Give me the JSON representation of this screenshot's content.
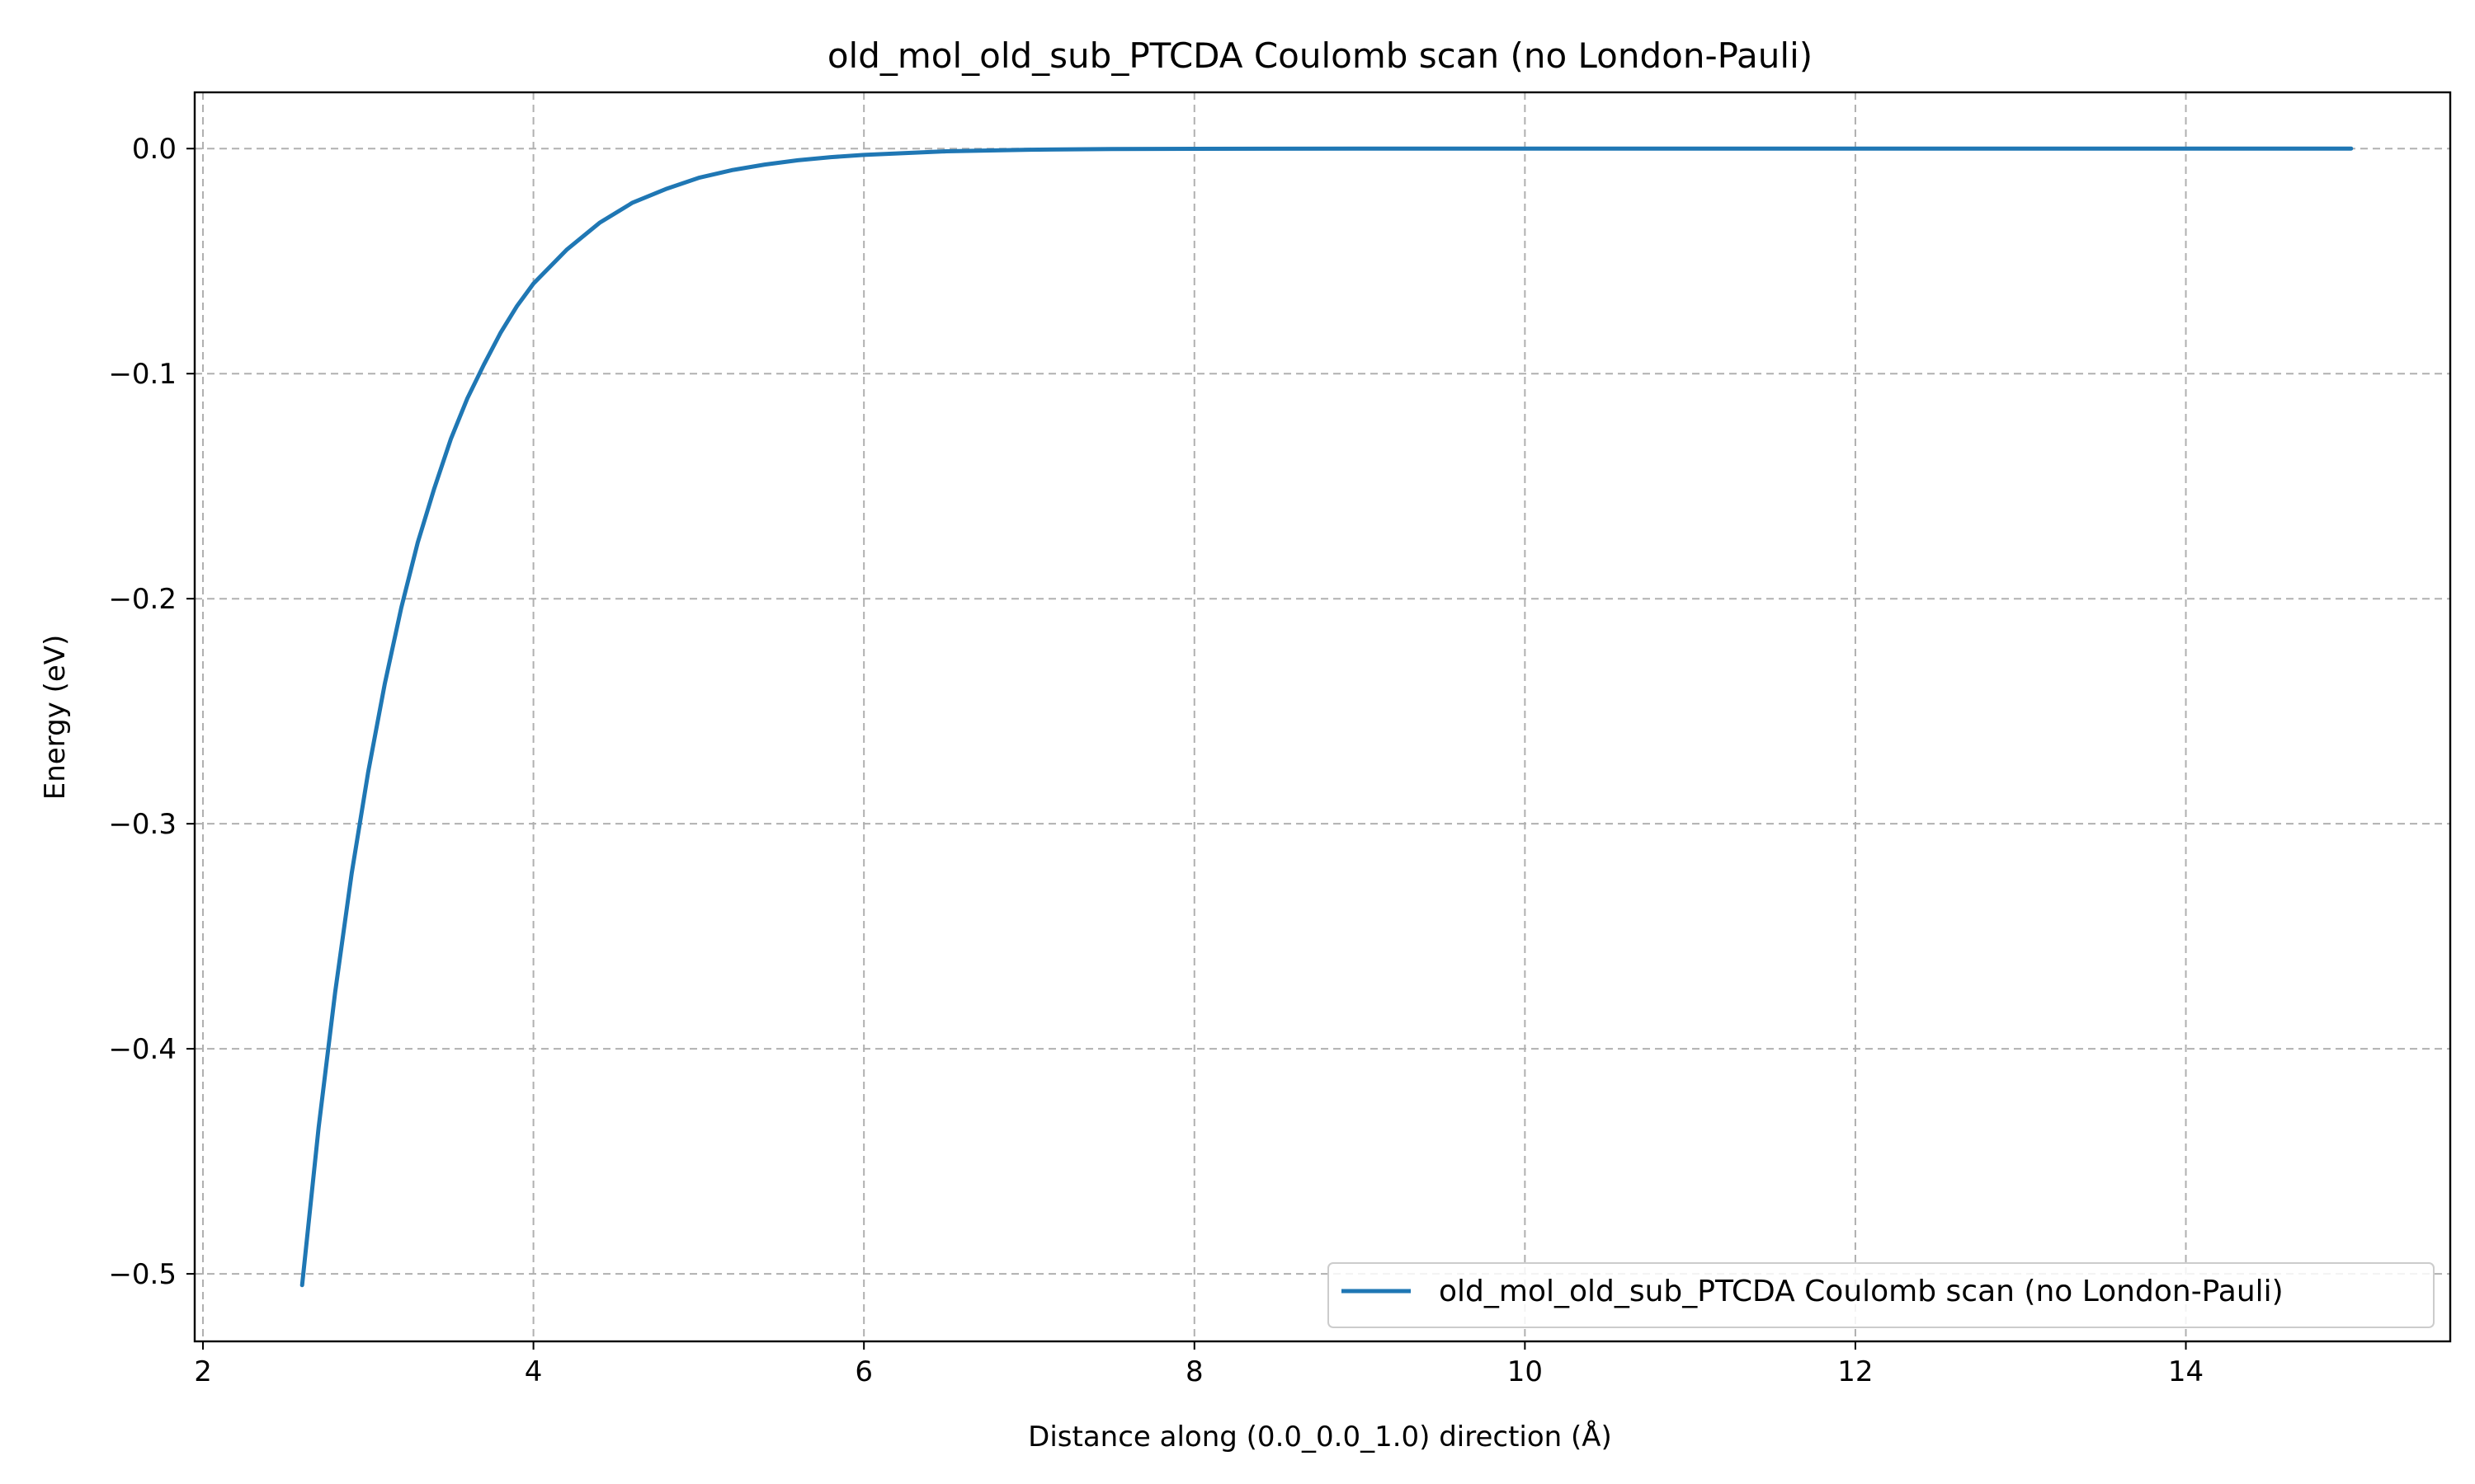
{
  "chart_data": {
    "type": "line",
    "title": "old_mol_old_sub_PTCDA Coulomb scan (no London-Pauli)",
    "xlabel": "Distance along (0.0_0.0_1.0) direction (Å)",
    "ylabel": "Energy (eV)",
    "xlim": [
      1.95,
      15.6
    ],
    "ylim": [
      -0.53,
      0.025
    ],
    "x_ticks": [
      2,
      4,
      6,
      8,
      10,
      12,
      14
    ],
    "y_ticks": [
      0.0,
      -0.1,
      -0.2,
      -0.3,
      -0.4,
      -0.5
    ],
    "x_tick_labels": [
      "2",
      "4",
      "6",
      "8",
      "10",
      "12",
      "14"
    ],
    "y_tick_labels": [
      "0.0",
      "−0.1",
      "−0.2",
      "−0.3",
      "−0.4",
      "−0.5"
    ],
    "grid": true,
    "legend": {
      "placement": "lower-right"
    },
    "series": [
      {
        "name": "old_mol_old_sub_PTCDA Coulomb scan (no London-Pauli)",
        "color": "#1f77b4",
        "x": [
          2.6,
          2.7,
          2.8,
          2.9,
          3.0,
          3.1,
          3.2,
          3.3,
          3.4,
          3.5,
          3.6,
          3.7,
          3.8,
          3.9,
          4.0,
          4.2,
          4.4,
          4.6,
          4.8,
          5.0,
          5.2,
          5.4,
          5.6,
          5.8,
          6.0,
          6.5,
          7.0,
          7.5,
          8.0,
          9.0,
          10.0,
          11.0,
          12.0,
          13.0,
          14.0,
          15.0
        ],
        "y": [
          -0.505,
          -0.435,
          -0.375,
          -0.322,
          -0.277,
          -0.238,
          -0.204,
          -0.175,
          -0.151,
          -0.129,
          -0.111,
          -0.096,
          -0.082,
          -0.07,
          -0.06,
          -0.045,
          -0.033,
          -0.024,
          -0.018,
          -0.013,
          -0.0096,
          -0.0071,
          -0.0052,
          -0.0038,
          -0.0028,
          -0.0012,
          -0.0005,
          -0.0002,
          -0.0001,
          0.0,
          0.0,
          0.0,
          0.0,
          0.0,
          0.0,
          0.0
        ]
      }
    ]
  }
}
